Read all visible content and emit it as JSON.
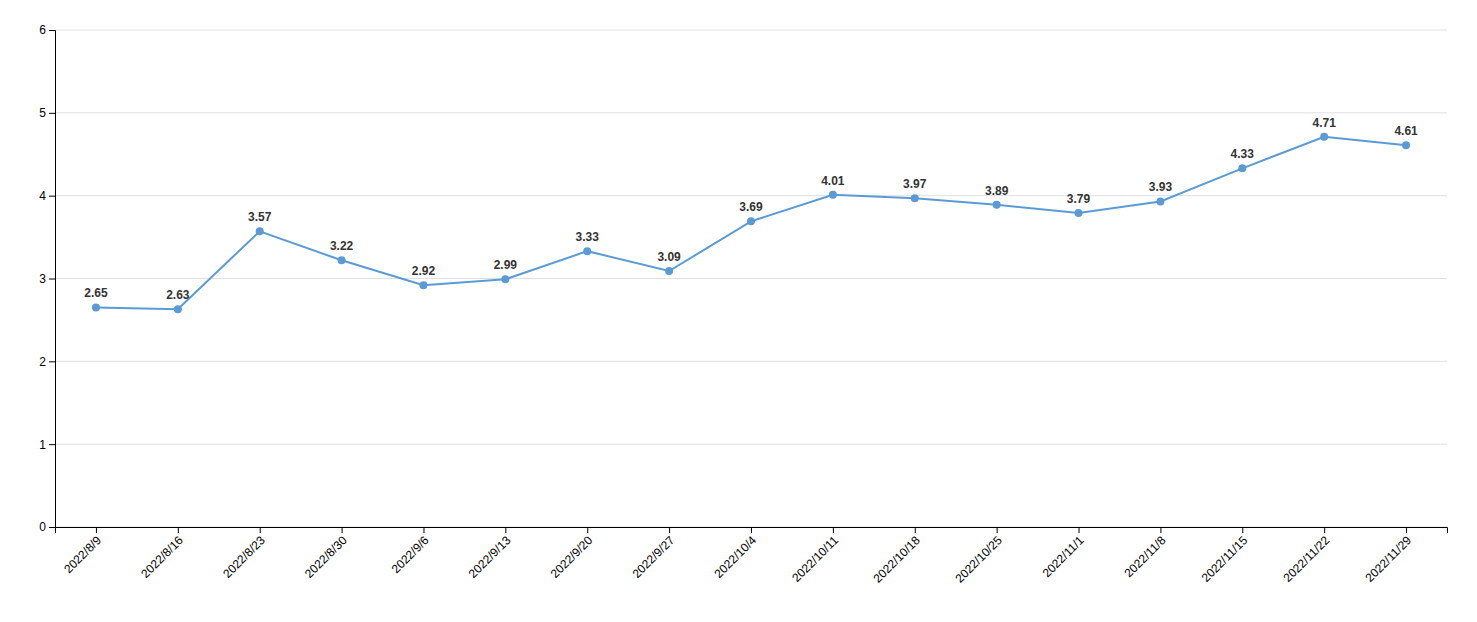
{
  "chart_data": {
    "type": "line",
    "categories": [
      "2022/8/9",
      "2022/8/16",
      "2022/8/23",
      "2022/8/30",
      "2022/9/6",
      "2022/9/13",
      "2022/9/20",
      "2022/9/27",
      "2022/10/4",
      "2022/10/11",
      "2022/10/18",
      "2022/10/25",
      "2022/11/1",
      "2022/11/8",
      "2022/11/15",
      "2022/11/22",
      "2022/11/29"
    ],
    "values": [
      2.65,
      2.63,
      3.57,
      3.22,
      2.92,
      2.99,
      3.33,
      3.09,
      3.69,
      4.01,
      3.97,
      3.89,
      3.79,
      3.93,
      4.33,
      4.71,
      4.61
    ],
    "color": "#5B9BD5",
    "marker": "circle",
    "ylim": [
      0,
      6
    ],
    "yticks": [
      0,
      1,
      2,
      3,
      4,
      5,
      6
    ],
    "grid": true,
    "data_labels": true
  }
}
